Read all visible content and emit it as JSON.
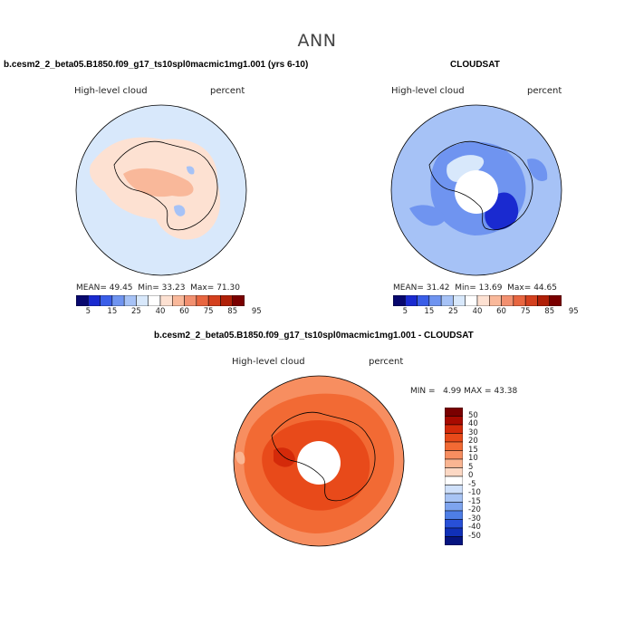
{
  "main_title": "ANN",
  "panels": [
    {
      "title": "b.cesm2_2_beta05.B1850.f09_g17_ts10spl0macmic1mg1.001 (yrs 6-10)",
      "variable": "High-level cloud",
      "units": "percent",
      "stats": {
        "mean_label": "MEAN=",
        "mean": "49.45",
        "min_label": "Min=",
        "min": "33.23",
        "max_label": "Max=",
        "max": "71.30"
      }
    },
    {
      "title": "CLOUDSAT",
      "variable": "High-level cloud",
      "units": "percent",
      "stats": {
        "mean_label": "MEAN=",
        "mean": "31.42",
        "min_label": "Min=",
        "min": "13.69",
        "max_label": "Max=",
        "max": "44.65"
      }
    },
    {
      "title": "b.cesm2_2_beta05.B1850.f09_g17_ts10spl0macmic1mg1.001 - CLOUDSAT",
      "variable": "High-level cloud",
      "units": "percent",
      "stats": {
        "min_label": "MIN =",
        "min": "4.99",
        "max_label": "MAX =",
        "max": "43.38"
      }
    }
  ],
  "colorbar_main": {
    "tick_labels": [
      "5",
      "15",
      "25",
      "40",
      "60",
      "75",
      "85",
      "95"
    ],
    "colors": [
      "#08086e",
      "#1a2ad0",
      "#3a5ee8",
      "#6f94f0",
      "#a6c2f6",
      "#d8e8fb",
      "#ffffff",
      "#fde1d2",
      "#f9b89a",
      "#f29070",
      "#e86640",
      "#d4401e",
      "#b02008",
      "#7a0000"
    ]
  },
  "colorbar_diff": {
    "tick_labels": [
      "50",
      "40",
      "30",
      "20",
      "15",
      "10",
      "5",
      "0",
      "-5",
      "-10",
      "-15",
      "-20",
      "-30",
      "-40",
      "-50"
    ],
    "colors": [
      "#7a0000",
      "#a80a00",
      "#d42a0a",
      "#e84a1a",
      "#f26a34",
      "#f78e60",
      "#fab592",
      "#fcd8c4",
      "#ffffff",
      "#cfe0fa",
      "#a8c4f4",
      "#7ea4ee",
      "#4e7ee6",
      "#2850d8",
      "#1030b8",
      "#061480"
    ]
  },
  "chart_data": [
    {
      "type": "heatmap",
      "projection": "south-polar-stereographic",
      "title": "b.cesm2_2_beta05.B1850.f09_g17_ts10spl0macmic1mg1.001 (yrs 6-10)",
      "variable": "High-level cloud",
      "units": "percent",
      "mean": 49.45,
      "min": 33.23,
      "max": 71.3,
      "contour_levels": [
        5,
        10,
        15,
        20,
        25,
        30,
        40,
        50,
        60,
        70,
        75,
        80,
        85,
        90,
        95
      ],
      "description_values": {
        "ocean": 45,
        "continent": 55,
        "east_antarctica_plateau": 60
      }
    },
    {
      "type": "heatmap",
      "projection": "south-polar-stereographic",
      "title": "CLOUDSAT",
      "variable": "High-level cloud",
      "units": "percent",
      "mean": 31.42,
      "min": 13.69,
      "max": 44.65,
      "contour_levels": [
        5,
        10,
        15,
        20,
        25,
        30,
        40,
        50,
        60,
        70,
        75,
        80,
        85,
        90,
        95
      ]
    },
    {
      "type": "heatmap",
      "projection": "south-polar-stereographic",
      "title": "b.cesm2_2_beta05.B1850.f09_g17_ts10spl0macmic1mg1.001 - CLOUDSAT",
      "variable": "High-level cloud",
      "units": "percent",
      "min": 4.99,
      "max": 43.38,
      "contour_levels": [
        -50,
        -40,
        -30,
        -20,
        -15,
        -10,
        -5,
        0,
        5,
        10,
        15,
        20,
        30,
        40,
        50
      ]
    }
  ]
}
